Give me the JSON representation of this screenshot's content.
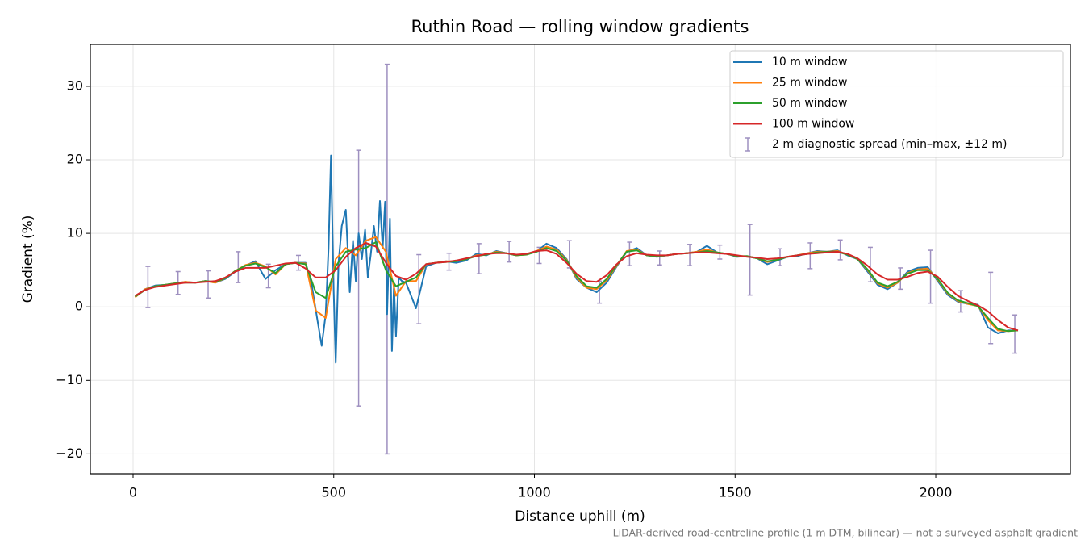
{
  "chart_data": {
    "type": "line",
    "title": "Ruthin Road — rolling window gradients",
    "x_label": "Distance uphill (m)",
    "y_label": "Gradient (%)",
    "footnote": "LiDAR-derived road-centreline profile (1 m DTM, bilinear) — not a surveyed asphalt gradient",
    "xlim": [
      -106.5,
      2335.6
    ],
    "ylim": [
      -22.7,
      35.7
    ],
    "xticks": [
      0,
      500,
      1000,
      1500,
      2000
    ],
    "yticks": [
      {
        "value": -20,
        "label": "−20"
      },
      {
        "value": -10,
        "label": "−10"
      },
      0,
      10,
      20,
      30
    ],
    "grid": true,
    "legend": "upper right",
    "x": [
      5,
      30,
      55,
      80,
      105,
      130,
      155,
      180,
      205,
      230,
      255,
      280,
      305,
      330,
      355,
      380,
      405,
      430,
      455,
      480,
      505,
      530,
      555,
      580,
      605,
      630,
      655,
      680,
      705,
      730,
      755,
      780,
      805,
      830,
      855,
      880,
      905,
      930,
      955,
      980,
      1005,
      1030,
      1055,
      1080,
      1105,
      1130,
      1155,
      1180,
      1205,
      1230,
      1255,
      1280,
      1305,
      1330,
      1355,
      1380,
      1405,
      1430,
      1455,
      1480,
      1505,
      1530,
      1555,
      1580,
      1605,
      1630,
      1655,
      1680,
      1705,
      1730,
      1755,
      1780,
      1805,
      1830,
      1855,
      1880,
      1905,
      1930,
      1955,
      1980,
      2005,
      2030,
      2055,
      2080,
      2105,
      2130,
      2155,
      2180,
      2205
    ],
    "series": [
      {
        "name": "10 m window",
        "color": "#1f77b4",
        "x": [
          5,
          30,
          55,
          80,
          105,
          130,
          155,
          180,
          205,
          230,
          255,
          280,
          305,
          330,
          355,
          380,
          405,
          430,
          445,
          460,
          470,
          480,
          487,
          493,
          500,
          505,
          512,
          520,
          530,
          540,
          548,
          555,
          562,
          570,
          578,
          585,
          592,
          600,
          608,
          615,
          622,
          628,
          633,
          640,
          645,
          650,
          655,
          662,
          670,
          680,
          705,
          730,
          755,
          780,
          805,
          830,
          855,
          880,
          905,
          930,
          955,
          980,
          1005,
          1030,
          1055,
          1080,
          1105,
          1130,
          1155,
          1180,
          1205,
          1230,
          1255,
          1280,
          1305,
          1330,
          1355,
          1380,
          1405,
          1430,
          1455,
          1480,
          1505,
          1530,
          1555,
          1580,
          1605,
          1630,
          1655,
          1680,
          1705,
          1730,
          1755,
          1780,
          1805,
          1830,
          1855,
          1880,
          1905,
          1930,
          1955,
          1980,
          2005,
          2030,
          2055,
          2080,
          2105,
          2130,
          2155,
          2180,
          2205
        ],
        "values": [
          1.4,
          2.4,
          2.9,
          3.0,
          3.2,
          3.4,
          3.3,
          3.5,
          3.3,
          3.8,
          4.8,
          5.6,
          6.2,
          3.8,
          5.0,
          5.8,
          6.0,
          6.0,
          3.0,
          -2.0,
          -5.3,
          -1.0,
          8.0,
          20.6,
          2.0,
          -7.6,
          6.0,
          11.0,
          13.2,
          2.0,
          9.0,
          3.5,
          10.0,
          6.5,
          10.5,
          4.0,
          7.0,
          11.0,
          7.5,
          14.4,
          8.0,
          14.3,
          -1.0,
          12.0,
          -6.0,
          3.0,
          -4.0,
          4.0,
          3.5,
          3.3,
          -0.2,
          5.5,
          6.0,
          6.2,
          6.0,
          6.3,
          7.2,
          7.0,
          7.6,
          7.3,
          7.0,
          7.2,
          7.5,
          8.6,
          8.0,
          6.5,
          3.8,
          2.6,
          2.0,
          3.3,
          5.5,
          7.5,
          8.0,
          7.0,
          6.8,
          7.0,
          7.2,
          7.3,
          7.5,
          8.3,
          7.4,
          7.2,
          6.8,
          6.9,
          6.6,
          5.8,
          6.3,
          6.8,
          6.9,
          7.3,
          7.6,
          7.5,
          7.7,
          7.0,
          6.5,
          4.8,
          3.0,
          2.4,
          3.3,
          4.8,
          5.3,
          5.4,
          3.5,
          1.6,
          0.7,
          0.4,
          0.3,
          -2.8,
          -3.6,
          -3.2,
          -3.2
        ]
      },
      {
        "name": "25 m window",
        "color": "#ff7f0e",
        "values": [
          1.3,
          2.4,
          2.8,
          3.0,
          3.2,
          3.4,
          3.3,
          3.5,
          3.3,
          3.9,
          4.9,
          5.7,
          6.0,
          5.5,
          4.4,
          5.8,
          6.0,
          5.9,
          -0.5,
          -1.5,
          6.5,
          8.0,
          7.0,
          9.0,
          9.5,
          7.5,
          1.5,
          3.5,
          3.5,
          5.8,
          6.0,
          6.2,
          6.2,
          6.5,
          7.0,
          7.1,
          7.5,
          7.3,
          7.0,
          7.1,
          7.6,
          8.2,
          7.8,
          6.4,
          4.0,
          2.6,
          2.4,
          3.6,
          5.6,
          7.6,
          7.8,
          7.0,
          6.9,
          7.0,
          7.2,
          7.3,
          7.5,
          7.8,
          7.4,
          7.2,
          6.9,
          6.9,
          6.6,
          6.1,
          6.4,
          6.8,
          7.0,
          7.3,
          7.5,
          7.5,
          7.6,
          7.1,
          6.5,
          5.0,
          3.2,
          2.6,
          3.3,
          4.6,
          5.1,
          5.2,
          3.7,
          1.8,
          0.8,
          0.4,
          0.1,
          -1.8,
          -3.2,
          -3.3,
          -3.2
        ]
      },
      {
        "name": "50 m window",
        "color": "#2ca02c",
        "values": [
          1.4,
          2.3,
          2.8,
          3.0,
          3.2,
          3.3,
          3.3,
          3.5,
          3.4,
          3.9,
          4.9,
          5.6,
          5.9,
          5.4,
          4.6,
          5.8,
          6.0,
          5.8,
          2.0,
          1.2,
          5.5,
          7.5,
          7.8,
          8.0,
          8.8,
          5.0,
          2.8,
          3.4,
          4.0,
          5.8,
          6.0,
          6.1,
          6.2,
          6.5,
          6.9,
          7.1,
          7.4,
          7.3,
          7.0,
          7.1,
          7.5,
          8.0,
          7.6,
          6.3,
          4.2,
          2.8,
          2.6,
          3.8,
          5.7,
          7.5,
          7.7,
          7.0,
          6.9,
          7.0,
          7.2,
          7.3,
          7.4,
          7.6,
          7.4,
          7.2,
          6.9,
          6.9,
          6.6,
          6.2,
          6.4,
          6.8,
          7.0,
          7.2,
          7.4,
          7.5,
          7.5,
          7.1,
          6.5,
          5.1,
          3.3,
          2.8,
          3.4,
          4.5,
          5.0,
          5.0,
          3.8,
          1.9,
          0.9,
          0.5,
          0.1,
          -1.5,
          -3.0,
          -3.3,
          -3.2
        ]
      },
      {
        "name": "100 m window",
        "color": "#d62728",
        "values": [
          1.5,
          2.3,
          2.7,
          2.9,
          3.1,
          3.3,
          3.3,
          3.4,
          3.5,
          4.0,
          4.8,
          5.3,
          5.3,
          5.3,
          5.6,
          5.9,
          6.0,
          5.2,
          4.0,
          4.0,
          5.0,
          6.8,
          8.0,
          8.7,
          8.2,
          6.0,
          4.2,
          3.7,
          4.5,
          5.8,
          6.0,
          6.1,
          6.3,
          6.6,
          6.9,
          7.2,
          7.3,
          7.3,
          7.1,
          7.2,
          7.6,
          7.7,
          7.2,
          6.0,
          4.5,
          3.5,
          3.4,
          4.3,
          5.8,
          6.9,
          7.3,
          7.1,
          7.0,
          7.0,
          7.2,
          7.3,
          7.4,
          7.4,
          7.3,
          7.2,
          7.0,
          6.8,
          6.7,
          6.5,
          6.6,
          6.8,
          7.0,
          7.2,
          7.3,
          7.4,
          7.5,
          7.2,
          6.6,
          5.6,
          4.4,
          3.7,
          3.7,
          4.1,
          4.6,
          4.8,
          4.1,
          2.7,
          1.5,
          0.8,
          0.2,
          -0.6,
          -1.8,
          -2.8,
          -3.2
        ]
      }
    ],
    "errorbars": {
      "name": "2 m diagnostic spread (min–max, ±12 m)",
      "color": "#9e90c0",
      "x": [
        37,
        112,
        187,
        262,
        337,
        412,
        562,
        633,
        712,
        787,
        862,
        937,
        1012,
        1087,
        1162,
        1237,
        1312,
        1387,
        1462,
        1537,
        1612,
        1687,
        1762,
        1837,
        1912,
        1987,
        2062,
        2137,
        2197
      ],
      "low": [
        -0.1,
        1.7,
        1.2,
        3.3,
        2.6,
        5.0,
        -13.5,
        -20.0,
        -2.3,
        5.0,
        4.5,
        6.1,
        5.9,
        5.3,
        0.5,
        5.6,
        5.7,
        5.6,
        6.5,
        1.6,
        5.6,
        5.2,
        6.4,
        3.4,
        2.4,
        0.5,
        -0.7,
        -5.0,
        -6.3
      ],
      "high": [
        5.5,
        4.8,
        4.9,
        7.5,
        5.8,
        7.0,
        21.3,
        33.0,
        7.1,
        7.3,
        8.6,
        8.9,
        8.1,
        9.0,
        3.5,
        8.8,
        7.6,
        8.5,
        8.4,
        11.2,
        7.9,
        8.7,
        9.1,
        8.1,
        5.3,
        7.7,
        2.2,
        4.7,
        -1.1
      ]
    }
  }
}
